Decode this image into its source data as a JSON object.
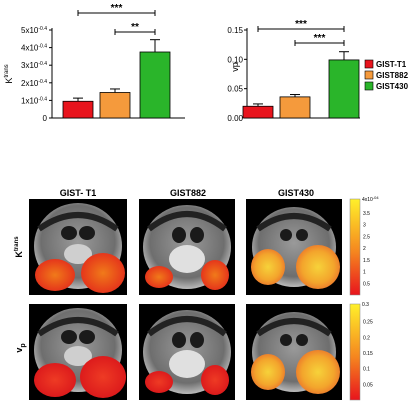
{
  "chart_data": [
    {
      "type": "bar",
      "categories": [
        "GIST-T1",
        "GIST882",
        "GIST430"
      ],
      "values": [
        0.95,
        1.45,
        3.75
      ],
      "errors": [
        0.18,
        0.2,
        0.7
      ],
      "colors": [
        "#e8141d",
        "#f59a3c",
        "#2ab52a"
      ],
      "ylabel_main": "K",
      "ylabel_sup": "trans",
      "ylim": [
        0,
        5
      ],
      "yticks": [
        {
          "value": 0,
          "label": "0"
        },
        {
          "value": 1,
          "label": "1x10"
        },
        {
          "value": 2,
          "label": "2x10"
        },
        {
          "value": 3,
          "label": "3x10"
        },
        {
          "value": 4,
          "label": "4x10"
        },
        {
          "value": 5,
          "label": "5x10"
        }
      ],
      "ytick_exp": "-0.4",
      "significance": [
        {
          "from": 0,
          "to": 2,
          "label": "***"
        },
        {
          "from": 1,
          "to": 2,
          "label": "**"
        }
      ]
    },
    {
      "type": "bar",
      "categories": [
        "GIST-T1",
        "GIST882",
        "GIST430"
      ],
      "values": [
        0.02,
        0.036,
        0.099
      ],
      "errors": [
        0.004,
        0.004,
        0.014
      ],
      "colors": [
        "#e8141d",
        "#f59a3c",
        "#2ab52a"
      ],
      "ylabel_main": "vp",
      "ylim": [
        0,
        0.15
      ],
      "yticks": [
        {
          "value": 0,
          "label": "0.00"
        },
        {
          "value": 0.05,
          "label": "0.05"
        },
        {
          "value": 0.1,
          "label": "0.10"
        },
        {
          "value": 0.15,
          "label": "0.15"
        }
      ],
      "significance": [
        {
          "from": 0,
          "to": 2,
          "label": "***"
        },
        {
          "from": 1,
          "to": 2,
          "label": "***"
        }
      ]
    }
  ],
  "legend": [
    {
      "label": "GIST-T1",
      "color": "#e8141d"
    },
    {
      "label": "GIST882",
      "color": "#f59a3c"
    },
    {
      "label": "GIST430",
      "color": "#2ab52a"
    }
  ],
  "mri_panel": {
    "column_headers": [
      "GIST- T1",
      "GIST882",
      "GIST430"
    ],
    "row_labels": [
      {
        "main": "K",
        "sup": "trans"
      },
      {
        "main": "v",
        "sub": "p"
      }
    ],
    "colorbars": [
      {
        "top_label": "4x10",
        "top_exp": "-04",
        "ticks": [
          "3.5",
          "3",
          "2.5",
          "2",
          "1.5",
          "1",
          "0.5"
        ]
      },
      {
        "top_label": "0.3",
        "ticks": [
          "0.25",
          "0.2",
          "0.15",
          "0.1",
          "0.05"
        ]
      }
    ]
  }
}
